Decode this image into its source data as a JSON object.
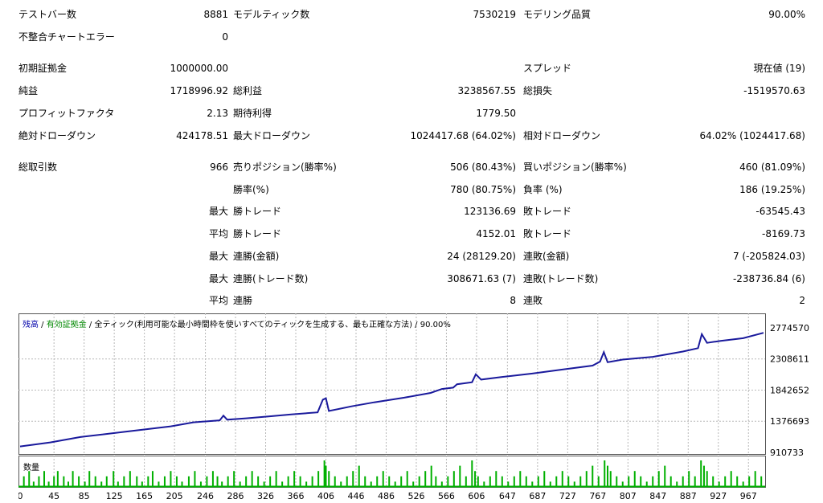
{
  "stats": {
    "row1": {
      "test_bars_label": "テストバー数",
      "test_bars_value": "8881",
      "model_ticks_label": "モデルティック数",
      "model_ticks_value": "7530219",
      "model_quality_label": "モデリング品質",
      "model_quality_value": "90.00%"
    },
    "row2": {
      "mismatch_label": "不整合チャートエラー",
      "mismatch_value": "0"
    },
    "row3": {
      "initial_deposit_label": "初期証拠金",
      "initial_deposit_value": "1000000.00",
      "spread_label": "スプレッド",
      "spread_value": "現在値 (19)"
    },
    "row4": {
      "net_profit_label": "純益",
      "net_profit_value": "1718996.92",
      "gross_profit_label": "総利益",
      "gross_profit_value": "3238567.55",
      "gross_loss_label": "総損失",
      "gross_loss_value": "-1519570.63"
    },
    "row5": {
      "profit_factor_label": "プロフィットファクタ",
      "profit_factor_value": "2.13",
      "expected_payoff_label": "期待利得",
      "expected_payoff_value": "1779.50"
    },
    "row6": {
      "abs_dd_label": "絶対ドローダウン",
      "abs_dd_value": "424178.51",
      "max_dd_label": "最大ドローダウン",
      "max_dd_value": "1024417.68 (64.02%)",
      "rel_dd_label": "相対ドローダウン",
      "rel_dd_value": "64.02% (1024417.68)"
    },
    "row7": {
      "total_trades_label": "総取引数",
      "total_trades_value": "966",
      "short_label": "売りポジション(勝率%)",
      "short_value": "506 (80.43%)",
      "long_label": "買いポジション(勝率%)",
      "long_value": "460 (81.09%)"
    },
    "row8": {
      "win_label": "勝率(%)",
      "win_value": "780 (80.75%)",
      "loss_label": "負率 (%)",
      "loss_value": "186 (19.25%)"
    },
    "row9": {
      "prefix": "最大",
      "win_trade_label": "勝トレード",
      "win_trade_value": "123136.69",
      "loss_trade_label": "敗トレード",
      "loss_trade_value": "-63545.43"
    },
    "row10": {
      "prefix": "平均",
      "win_trade_label": "勝トレード",
      "win_trade_value": "4152.01",
      "loss_trade_label": "敗トレード",
      "loss_trade_value": "-8169.73"
    },
    "row11": {
      "prefix": "最大",
      "cons_win_label": "連勝(金額)",
      "cons_win_value": "24 (28129.20)",
      "cons_loss_label": "連敗(金額)",
      "cons_loss_value": "7 (-205824.03)"
    },
    "row12": {
      "prefix": "最大",
      "cons_win_label": "連勝(トレード数)",
      "cons_win_value": "308671.63 (7)",
      "cons_loss_label": "連敗(トレード数)",
      "cons_loss_value": "-238736.84 (6)"
    },
    "row13": {
      "prefix": "平均",
      "cons_win_label": "連勝",
      "cons_win_value": "8",
      "cons_loss_label": "連敗",
      "cons_loss_value": "2"
    }
  },
  "chart": {
    "legend_balance": "残高",
    "legend_sep1": " / ",
    "legend_equity": "有効証拠金",
    "legend_sep2": " / ",
    "legend_model": "全ティック(利用可能な最小時間枠を使いすべてのティックを生成する、最も正確な方法)",
    "legend_quality": " / 90.00%",
    "volume_label": "数量",
    "line_color": "#1a1a9c",
    "volume_color": "#00b000",
    "grid_color": "#b8b8b8"
  },
  "chart_data": {
    "type": "line",
    "title": "",
    "xlabel": "",
    "ylabel": "",
    "ylim": [
      910733,
      2774570
    ],
    "xlim": [
      0,
      987
    ],
    "y_ticks": [
      "2774570",
      "2308611",
      "1842652",
      "1376693",
      "910733"
    ],
    "y_tick_values": [
      2774570,
      2308611,
      1842652,
      1376693,
      910733
    ],
    "x_ticks": [
      "0",
      "45",
      "85",
      "125",
      "165",
      "205",
      "246",
      "286",
      "326",
      "366",
      "406",
      "446",
      "486",
      "526",
      "566",
      "606",
      "647",
      "687",
      "727",
      "767",
      "807",
      "847",
      "887",
      "927",
      "967"
    ],
    "x_tick_values": [
      0,
      45,
      85,
      125,
      165,
      205,
      246,
      286,
      326,
      366,
      406,
      446,
      486,
      526,
      566,
      606,
      647,
      687,
      727,
      767,
      807,
      847,
      887,
      927,
      967
    ],
    "series": [
      {
        "x": [
          0,
          40,
          80,
          140,
          200,
          230,
          265,
          270,
          275,
          300,
          330,
          360,
          395,
          402,
          406,
          410,
          440,
          470,
          510,
          545,
          560,
          575,
          580,
          600,
          605,
          612,
          640,
          680,
          720,
          760,
          770,
          775,
          780,
          800,
          840,
          880,
          900,
          905,
          912,
          930,
          960,
          987
        ],
        "values": [
          1000000,
          1060000,
          1140000,
          1220000,
          1300000,
          1360000,
          1390000,
          1460000,
          1400000,
          1420000,
          1450000,
          1480000,
          1510000,
          1700000,
          1720000,
          1530000,
          1600000,
          1660000,
          1730000,
          1800000,
          1860000,
          1880000,
          1930000,
          1960000,
          2080000,
          2000000,
          2040000,
          2090000,
          2150000,
          2210000,
          2270000,
          2410000,
          2260000,
          2300000,
          2340000,
          2420000,
          2470000,
          2680000,
          2550000,
          2580000,
          2620000,
          2700000
        ]
      }
    ],
    "volume": {
      "x": [
        5,
        12,
        18,
        25,
        32,
        38,
        45,
        50,
        58,
        64,
        70,
        78,
        86,
        92,
        100,
        108,
        115,
        124,
        130,
        138,
        146,
        155,
        162,
        170,
        176,
        184,
        192,
        200,
        208,
        215,
        224,
        232,
        240,
        248,
        256,
        262,
        268,
        276,
        284,
        292,
        300,
        308,
        316,
        324,
        332,
        340,
        348,
        356,
        364,
        372,
        380,
        388,
        396,
        404,
        406,
        410,
        418,
        426,
        434,
        442,
        450,
        458,
        466,
        474,
        482,
        490,
        498,
        506,
        514,
        522,
        530,
        538,
        546,
        552,
        560,
        568,
        576,
        584,
        592,
        600,
        604,
        608,
        616,
        624,
        632,
        640,
        648,
        656,
        664,
        672,
        680,
        688,
        696,
        704,
        712,
        720,
        728,
        736,
        744,
        752,
        760,
        768,
        776,
        780,
        784,
        792,
        800,
        808,
        816,
        824,
        832,
        840,
        848,
        856,
        864,
        872,
        880,
        888,
        896,
        904,
        908,
        912,
        920,
        928,
        936,
        944,
        952,
        960,
        968,
        976,
        984
      ],
      "values": [
        2,
        3,
        1,
        2,
        3,
        1,
        2,
        3,
        2,
        1,
        3,
        2,
        1,
        3,
        2,
        1,
        2,
        3,
        1,
        2,
        3,
        2,
        1,
        2,
        3,
        1,
        2,
        3,
        2,
        1,
        2,
        3,
        1,
        2,
        3,
        2,
        1,
        2,
        3,
        1,
        2,
        3,
        2,
        1,
        2,
        3,
        1,
        2,
        3,
        2,
        1,
        2,
        3,
        5,
        4,
        3,
        2,
        1,
        2,
        3,
        4,
        2,
        1,
        2,
        3,
        2,
        1,
        2,
        3,
        1,
        2,
        3,
        4,
        2,
        1,
        2,
        3,
        4,
        2,
        5,
        3,
        2,
        1,
        2,
        3,
        2,
        1,
        2,
        3,
        2,
        1,
        2,
        3,
        1,
        2,
        3,
        2,
        1,
        2,
        3,
        4,
        2,
        5,
        4,
        3,
        2,
        1,
        2,
        3,
        2,
        1,
        2,
        3,
        4,
        2,
        1,
        2,
        3,
        2,
        5,
        4,
        3,
        2,
        1,
        2,
        3,
        2,
        1,
        2,
        3,
        2
      ]
    }
  }
}
